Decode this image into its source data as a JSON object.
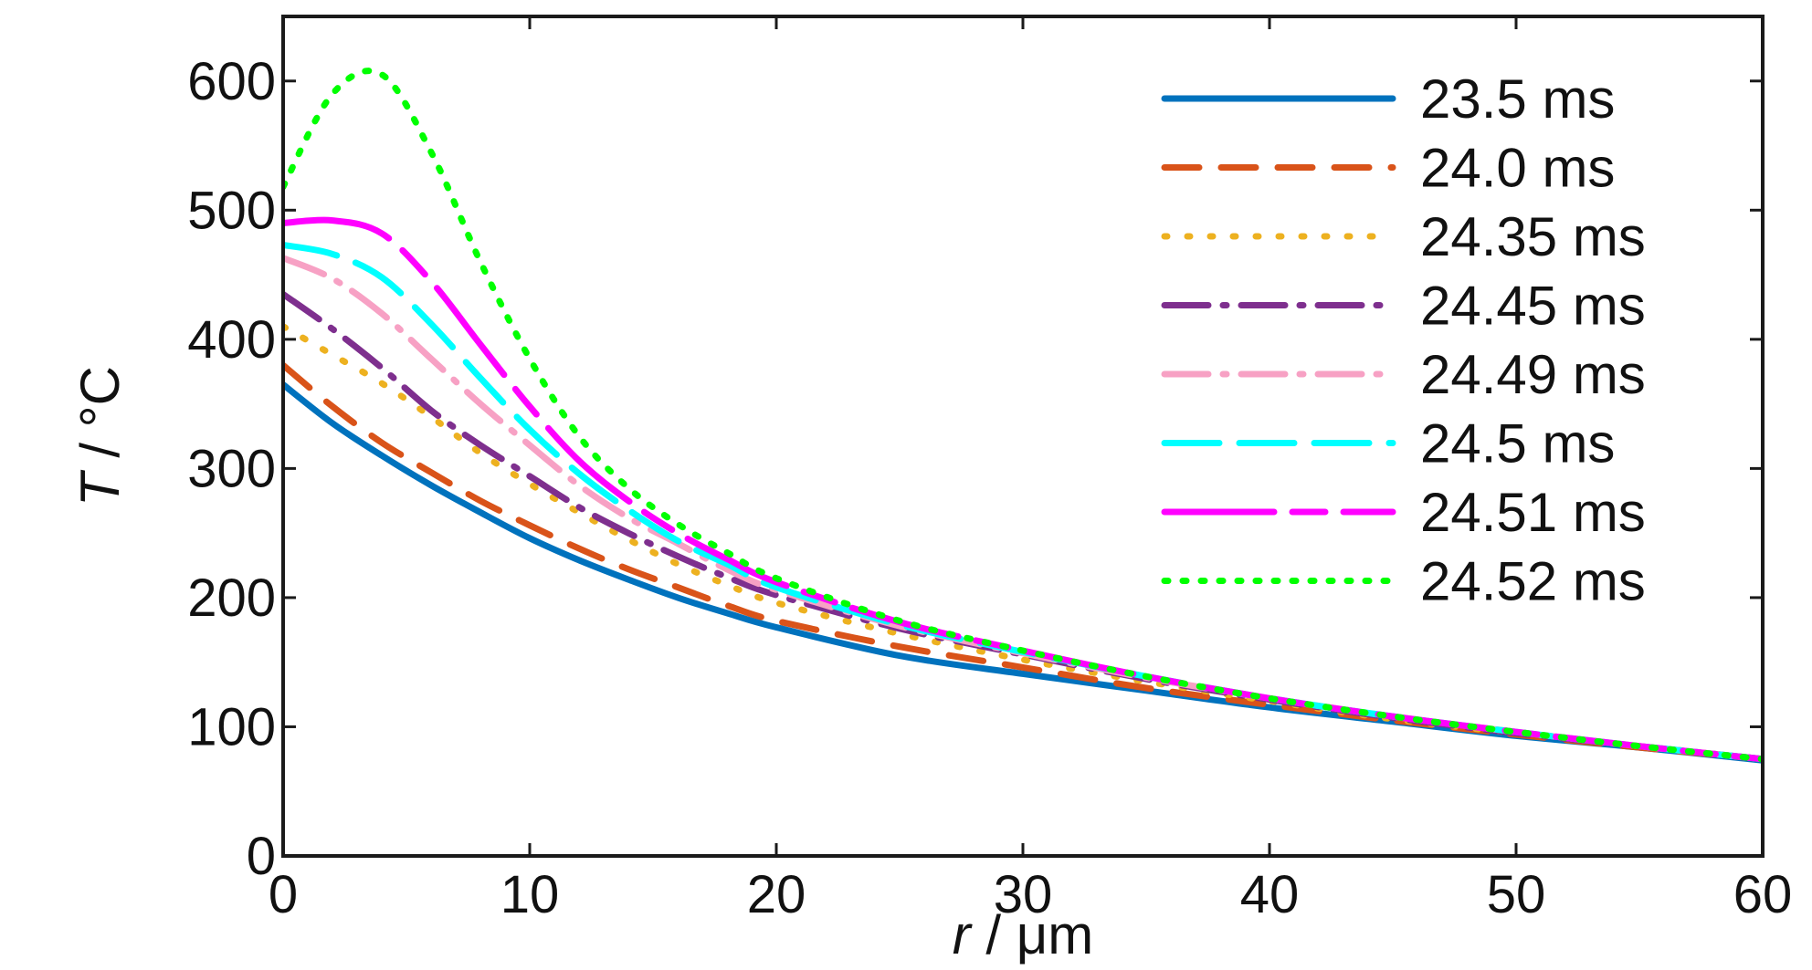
{
  "chart_data": {
    "type": "line",
    "title": "",
    "xlabel_italic": "r",
    "xlabel_rest": " / μm",
    "ylabel_italic": "T",
    "ylabel_rest": " / °C",
    "xlim": [
      0,
      60
    ],
    "ylim": [
      0,
      650
    ],
    "x_ticks": [
      0,
      10,
      20,
      30,
      40,
      50,
      60
    ],
    "x_tick_labels": [
      "0",
      "10",
      "20",
      "30",
      "40",
      "50",
      "60"
    ],
    "y_ticks": [
      0,
      100,
      200,
      300,
      400,
      500,
      600
    ],
    "y_tick_labels": [
      "0",
      "100",
      "200",
      "300",
      "400",
      "500",
      "600"
    ],
    "grid": false,
    "legend_position": "top-right",
    "x": [
      0,
      2,
      4,
      6,
      8,
      10,
      12,
      14,
      16,
      18,
      20,
      25,
      30,
      35,
      40,
      45,
      50,
      55,
      60
    ],
    "series": [
      {
        "name": "23.5 ms",
        "color": "#0072BD",
        "dash": "",
        "y": [
          365,
          335,
          310,
          287,
          266,
          246,
          229,
          214,
          200,
          188,
          177,
          155,
          141,
          128,
          115,
          104,
          93,
          84,
          74
        ]
      },
      {
        "name": "24.0 ms",
        "color": "#D95319",
        "dash": "38 24",
        "y": [
          380,
          348,
          320,
          297,
          275,
          256,
          238,
          222,
          208,
          194,
          182,
          162,
          146,
          130,
          117,
          105,
          94,
          84,
          75
        ]
      },
      {
        "name": "24.35 ms",
        "color": "#EDB120",
        "dash": "3 22",
        "y": [
          410,
          388,
          366,
          340,
          312,
          288,
          266,
          245,
          226,
          210,
          196,
          172,
          152,
          135,
          120,
          106,
          95,
          85,
          75
        ]
      },
      {
        "name": "24.45 ms",
        "color": "#7E2F8E",
        "dash": "48 16 4 16",
        "y": [
          435,
          408,
          378,
          345,
          318,
          294,
          270,
          250,
          232,
          216,
          202,
          176,
          156,
          137,
          121,
          107,
          95,
          85,
          75
        ]
      },
      {
        "name": "24.49 ms",
        "color": "#F7A1C4",
        "dash": "48 16 4 16",
        "y": [
          463,
          447,
          420,
          385,
          350,
          318,
          287,
          262,
          242,
          222,
          206,
          178,
          157,
          138,
          122,
          108,
          96,
          85,
          75
        ]
      },
      {
        "name": "24.5 ms",
        "color": "#00FFFF",
        "dash": "60 22",
        "y": [
          473,
          466,
          448,
          412,
          370,
          330,
          296,
          268,
          244,
          226,
          208,
          179,
          158,
          139,
          122,
          108,
          96,
          85,
          75
        ]
      },
      {
        "name": "24.51 ms",
        "color": "#FF00FF",
        "dash": "120 20 36 20",
        "y": [
          490,
          492,
          482,
          445,
          396,
          348,
          306,
          275,
          250,
          230,
          212,
          181,
          159,
          139,
          122,
          108,
          96,
          85,
          75
        ]
      },
      {
        "name": "24.52 ms",
        "color": "#00FF00",
        "dash": "4 16",
        "y": [
          518,
          590,
          605,
          545,
          460,
          385,
          325,
          285,
          257,
          235,
          215,
          182,
          159,
          139,
          122,
          108,
          96,
          85,
          75
        ]
      }
    ]
  }
}
